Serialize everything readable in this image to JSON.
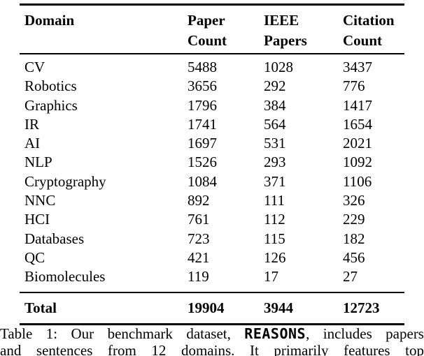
{
  "table": {
    "columns": [
      {
        "label": "Domain"
      },
      {
        "label": "Paper\nCount"
      },
      {
        "label": "IEEE\nPapers"
      },
      {
        "label": "Citation\nCount"
      }
    ],
    "rows": [
      {
        "domain": "CV",
        "paper_count": "5488",
        "ieee_papers": "1028",
        "citation_count": "3437"
      },
      {
        "domain": "Robotics",
        "paper_count": "3656",
        "ieee_papers": "292",
        "citation_count": "776"
      },
      {
        "domain": "Graphics",
        "paper_count": "1796",
        "ieee_papers": "384",
        "citation_count": "1417"
      },
      {
        "domain": "IR",
        "paper_count": "1741",
        "ieee_papers": "564",
        "citation_count": "1654"
      },
      {
        "domain": "AI",
        "paper_count": "1697",
        "ieee_papers": "531",
        "citation_count": "2021"
      },
      {
        "domain": "NLP",
        "paper_count": "1526",
        "ieee_papers": "293",
        "citation_count": "1092"
      },
      {
        "domain": "Cryptography",
        "paper_count": "1084",
        "ieee_papers": "371",
        "citation_count": "1106"
      },
      {
        "domain": "NNC",
        "paper_count": "892",
        "ieee_papers": "111",
        "citation_count": "326"
      },
      {
        "domain": "HCI",
        "paper_count": "761",
        "ieee_papers": "112",
        "citation_count": "229"
      },
      {
        "domain": "Databases",
        "paper_count": "723",
        "ieee_papers": "115",
        "citation_count": "182"
      },
      {
        "domain": "QC",
        "paper_count": "421",
        "ieee_papers": "126",
        "citation_count": "456"
      },
      {
        "domain": "Biomolecules",
        "paper_count": "119",
        "ieee_papers": "17",
        "citation_count": "27"
      }
    ],
    "total": {
      "domain": "Total",
      "paper_count": "19904",
      "ieee_papers": "3944",
      "citation_count": "12723"
    }
  },
  "caption": {
    "line1_before": "Table 1: Our benchmark dataset, ",
    "line1_code": "REASONS",
    "line1_after": ", includes papers",
    "line2": "and sentences from 12 domains. It primarily features top"
  }
}
